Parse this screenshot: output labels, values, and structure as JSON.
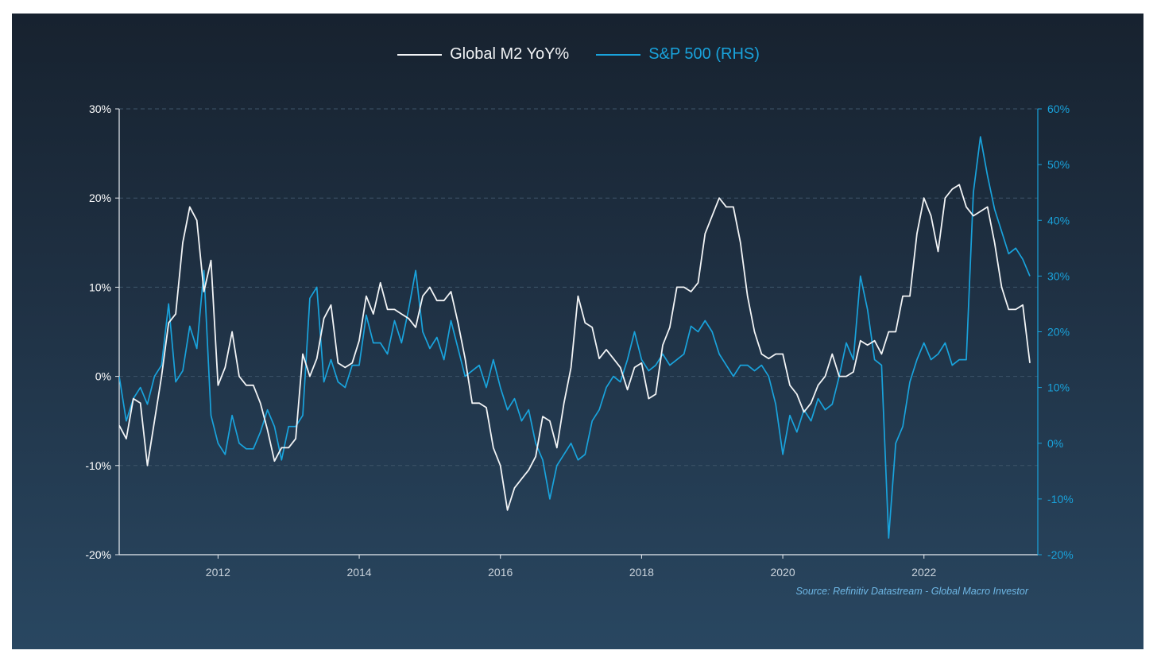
{
  "colors": {
    "m2": "#f2f4f6",
    "spx": "#19a3dc",
    "left_axis_text": "#ffffff",
    "right_axis_text": "#19a3dc",
    "x_axis_text": "#c9d2db",
    "grid": "#3e5569"
  },
  "source_text": "Source: Refinitiv Datastream - Global Macro Investor",
  "chart_data": {
    "type": "line",
    "title": "",
    "xlabel": "",
    "ylabel_left": "",
    "ylabel_right": "",
    "grid": true,
    "legend_position": "top-center",
    "xlim": [
      2010.6,
      2023.5
    ],
    "ylim_left": [
      -20,
      30
    ],
    "ylim_right": [
      -20,
      60
    ],
    "x_ticks": [
      2012,
      2014,
      2016,
      2018,
      2020,
      2022
    ],
    "x_tick_labels": [
      "2012",
      "2014",
      "2016",
      "2018",
      "2020",
      "2022"
    ],
    "y_left_ticks": [
      -20,
      -10,
      0,
      10,
      20,
      30
    ],
    "y_left_tick_labels": [
      "-20%",
      "-10%",
      "0%",
      "10%",
      "20%",
      "30%"
    ],
    "y_right_ticks": [
      -20,
      -10,
      0,
      10,
      20,
      30,
      40,
      50,
      60
    ],
    "y_right_tick_labels": [
      "-20%",
      "-10%",
      "0%",
      "10%",
      "20%",
      "30%",
      "40%",
      "50%",
      "60%"
    ],
    "series": [
      {
        "name": "Global M2 YoY%",
        "axis": "left",
        "points": [
          [
            2010.6,
            -5.5
          ],
          [
            2010.7,
            -7
          ],
          [
            2010.8,
            -2.5
          ],
          [
            2010.9,
            -3
          ],
          [
            2011.0,
            -10
          ],
          [
            2011.1,
            -5
          ],
          [
            2011.2,
            0
          ],
          [
            2011.3,
            6
          ],
          [
            2011.4,
            7
          ],
          [
            2011.5,
            15
          ],
          [
            2011.6,
            19
          ],
          [
            2011.7,
            17.5
          ],
          [
            2011.8,
            9.5
          ],
          [
            2011.9,
            13
          ],
          [
            2012.0,
            -1
          ],
          [
            2012.1,
            1
          ],
          [
            2012.2,
            5
          ],
          [
            2012.3,
            0
          ],
          [
            2012.4,
            -1
          ],
          [
            2012.5,
            -1
          ],
          [
            2012.6,
            -3
          ],
          [
            2012.7,
            -6
          ],
          [
            2012.8,
            -9.5
          ],
          [
            2012.9,
            -8
          ],
          [
            2013.0,
            -8
          ],
          [
            2013.1,
            -7
          ],
          [
            2013.2,
            2.5
          ],
          [
            2013.3,
            0
          ],
          [
            2013.4,
            2
          ],
          [
            2013.5,
            6.5
          ],
          [
            2013.6,
            8
          ],
          [
            2013.7,
            1.5
          ],
          [
            2013.8,
            1
          ],
          [
            2013.9,
            1.5
          ],
          [
            2014.0,
            4
          ],
          [
            2014.1,
            9
          ],
          [
            2014.2,
            7
          ],
          [
            2014.3,
            10.5
          ],
          [
            2014.4,
            7.5
          ],
          [
            2014.5,
            7.5
          ],
          [
            2014.6,
            7
          ],
          [
            2014.7,
            6.5
          ],
          [
            2014.8,
            5.5
          ],
          [
            2014.9,
            9
          ],
          [
            2015.0,
            10
          ],
          [
            2015.1,
            8.5
          ],
          [
            2015.2,
            8.5
          ],
          [
            2015.3,
            9.5
          ],
          [
            2015.4,
            6
          ],
          [
            2015.5,
            2
          ],
          [
            2015.6,
            -3
          ],
          [
            2015.7,
            -3
          ],
          [
            2015.8,
            -3.5
          ],
          [
            2015.9,
            -8
          ],
          [
            2016.0,
            -10
          ],
          [
            2016.1,
            -15
          ],
          [
            2016.2,
            -12.5
          ],
          [
            2016.3,
            -11.5
          ],
          [
            2016.4,
            -10.5
          ],
          [
            2016.5,
            -9
          ],
          [
            2016.6,
            -4.5
          ],
          [
            2016.7,
            -5
          ],
          [
            2016.8,
            -8
          ],
          [
            2016.9,
            -3
          ],
          [
            2017.0,
            1
          ],
          [
            2017.1,
            9
          ],
          [
            2017.2,
            6
          ],
          [
            2017.3,
            5.5
          ],
          [
            2017.4,
            2
          ],
          [
            2017.5,
            3
          ],
          [
            2017.6,
            2
          ],
          [
            2017.7,
            1
          ],
          [
            2017.8,
            -1.5
          ],
          [
            2017.9,
            1
          ],
          [
            2018.0,
            1.5
          ],
          [
            2018.1,
            -2.5
          ],
          [
            2018.2,
            -2
          ],
          [
            2018.3,
            3.5
          ],
          [
            2018.4,
            5.5
          ],
          [
            2018.5,
            10
          ],
          [
            2018.6,
            10
          ],
          [
            2018.7,
            9.5
          ],
          [
            2018.8,
            10.5
          ],
          [
            2018.9,
            16
          ],
          [
            2019.0,
            18
          ],
          [
            2019.1,
            20
          ],
          [
            2019.2,
            19
          ],
          [
            2019.3,
            19
          ],
          [
            2019.4,
            15
          ],
          [
            2019.5,
            9
          ],
          [
            2019.6,
            5
          ],
          [
            2019.7,
            2.5
          ],
          [
            2019.8,
            2
          ],
          [
            2019.9,
            2.5
          ],
          [
            2020.0,
            2.5
          ],
          [
            2020.1,
            -1
          ],
          [
            2020.2,
            -2
          ],
          [
            2020.3,
            -4
          ],
          [
            2020.4,
            -3
          ],
          [
            2020.5,
            -1
          ],
          [
            2020.6,
            0
          ],
          [
            2020.7,
            2.5
          ],
          [
            2020.8,
            0
          ],
          [
            2020.9,
            0
          ],
          [
            2021.0,
            0.5
          ],
          [
            2021.1,
            4
          ],
          [
            2021.2,
            3.5
          ],
          [
            2021.3,
            4
          ],
          [
            2021.4,
            2.5
          ],
          [
            2021.5,
            5
          ],
          [
            2021.6,
            5
          ],
          [
            2021.7,
            9
          ],
          [
            2021.8,
            9
          ],
          [
            2021.9,
            16
          ],
          [
            2022.0,
            20
          ],
          [
            2022.1,
            18
          ],
          [
            2022.2,
            14
          ],
          [
            2022.3,
            20
          ],
          [
            2022.4,
            21
          ],
          [
            2022.5,
            21.5
          ],
          [
            2022.6,
            19
          ],
          [
            2022.7,
            18
          ],
          [
            2022.8,
            18.5
          ],
          [
            2022.9,
            19
          ],
          [
            2023.0,
            15
          ],
          [
            2023.1,
            10
          ],
          [
            2023.2,
            7.5
          ],
          [
            2023.3,
            7.5
          ],
          [
            2023.4,
            8
          ],
          [
            2023.5,
            1.5
          ]
        ]
      },
      {
        "name": "S&P 500 (RHS)",
        "axis": "right",
        "points": [
          [
            2010.6,
            12
          ],
          [
            2010.7,
            4
          ],
          [
            2010.8,
            8
          ],
          [
            2010.9,
            10
          ],
          [
            2011.0,
            7
          ],
          [
            2011.1,
            12
          ],
          [
            2011.2,
            14
          ],
          [
            2011.3,
            25
          ],
          [
            2011.4,
            11
          ],
          [
            2011.5,
            13
          ],
          [
            2011.6,
            21
          ],
          [
            2011.7,
            17
          ],
          [
            2011.8,
            31
          ],
          [
            2011.9,
            5
          ],
          [
            2012.0,
            0
          ],
          [
            2012.1,
            -2
          ],
          [
            2012.2,
            5
          ],
          [
            2012.3,
            0
          ],
          [
            2012.4,
            -1
          ],
          [
            2012.5,
            -1
          ],
          [
            2012.6,
            2
          ],
          [
            2012.7,
            6
          ],
          [
            2012.8,
            3
          ],
          [
            2012.9,
            -3
          ],
          [
            2013.0,
            3
          ],
          [
            2013.1,
            3
          ],
          [
            2013.2,
            5
          ],
          [
            2013.3,
            26
          ],
          [
            2013.4,
            28
          ],
          [
            2013.5,
            11
          ],
          [
            2013.6,
            15
          ],
          [
            2013.7,
            11
          ],
          [
            2013.8,
            10
          ],
          [
            2013.9,
            14
          ],
          [
            2014.0,
            14
          ],
          [
            2014.1,
            23
          ],
          [
            2014.2,
            18
          ],
          [
            2014.3,
            18
          ],
          [
            2014.4,
            16
          ],
          [
            2014.5,
            22
          ],
          [
            2014.6,
            18
          ],
          [
            2014.7,
            24
          ],
          [
            2014.8,
            31
          ],
          [
            2014.9,
            20
          ],
          [
            2015.0,
            17
          ],
          [
            2015.1,
            19
          ],
          [
            2015.2,
            15
          ],
          [
            2015.3,
            22
          ],
          [
            2015.4,
            17
          ],
          [
            2015.5,
            12
          ],
          [
            2015.6,
            13
          ],
          [
            2015.7,
            14
          ],
          [
            2015.8,
            10
          ],
          [
            2015.9,
            15
          ],
          [
            2016.0,
            10
          ],
          [
            2016.1,
            6
          ],
          [
            2016.2,
            8
          ],
          [
            2016.3,
            4
          ],
          [
            2016.4,
            6
          ],
          [
            2016.5,
            0
          ],
          [
            2016.6,
            -3
          ],
          [
            2016.7,
            -10
          ],
          [
            2016.8,
            -4
          ],
          [
            2016.9,
            -2
          ],
          [
            2017.0,
            0
          ],
          [
            2017.1,
            -3
          ],
          [
            2017.2,
            -2
          ],
          [
            2017.3,
            4
          ],
          [
            2017.4,
            6
          ],
          [
            2017.5,
            10
          ],
          [
            2017.6,
            12
          ],
          [
            2017.7,
            11
          ],
          [
            2017.8,
            15
          ],
          [
            2017.9,
            20
          ],
          [
            2018.0,
            15
          ],
          [
            2018.1,
            13
          ],
          [
            2018.2,
            14
          ],
          [
            2018.3,
            16
          ],
          [
            2018.4,
            14
          ],
          [
            2018.5,
            15
          ],
          [
            2018.6,
            16
          ],
          [
            2018.7,
            21
          ],
          [
            2018.8,
            20
          ],
          [
            2018.9,
            22
          ],
          [
            2019.0,
            20
          ],
          [
            2019.1,
            16
          ],
          [
            2019.2,
            14
          ],
          [
            2019.3,
            12
          ],
          [
            2019.4,
            14
          ],
          [
            2019.5,
            14
          ],
          [
            2019.6,
            13
          ],
          [
            2019.7,
            14
          ],
          [
            2019.8,
            12
          ],
          [
            2019.9,
            7
          ],
          [
            2020.0,
            -2
          ],
          [
            2020.1,
            5
          ],
          [
            2020.2,
            2
          ],
          [
            2020.3,
            6
          ],
          [
            2020.4,
            4
          ],
          [
            2020.5,
            8
          ],
          [
            2020.6,
            6
          ],
          [
            2020.7,
            7
          ],
          [
            2020.8,
            12
          ],
          [
            2020.9,
            18
          ],
          [
            2021.0,
            15
          ],
          [
            2021.1,
            30
          ],
          [
            2021.2,
            24
          ],
          [
            2021.3,
            15
          ],
          [
            2021.4,
            14
          ],
          [
            2021.5,
            -17
          ],
          [
            2021.6,
            0
          ],
          [
            2021.7,
            3
          ],
          [
            2021.8,
            11
          ],
          [
            2021.9,
            15
          ],
          [
            2022.0,
            18
          ],
          [
            2022.1,
            15
          ],
          [
            2022.2,
            16
          ],
          [
            2022.3,
            18
          ],
          [
            2022.4,
            14
          ],
          [
            2022.5,
            15
          ],
          [
            2022.6,
            15
          ],
          [
            2022.7,
            45
          ],
          [
            2022.8,
            55
          ],
          [
            2022.9,
            48
          ],
          [
            2023.0,
            42
          ],
          [
            2023.1,
            38
          ],
          [
            2023.2,
            34
          ],
          [
            2023.3,
            35
          ],
          [
            2023.4,
            33
          ],
          [
            2023.5,
            30
          ]
        ]
      }
    ]
  }
}
